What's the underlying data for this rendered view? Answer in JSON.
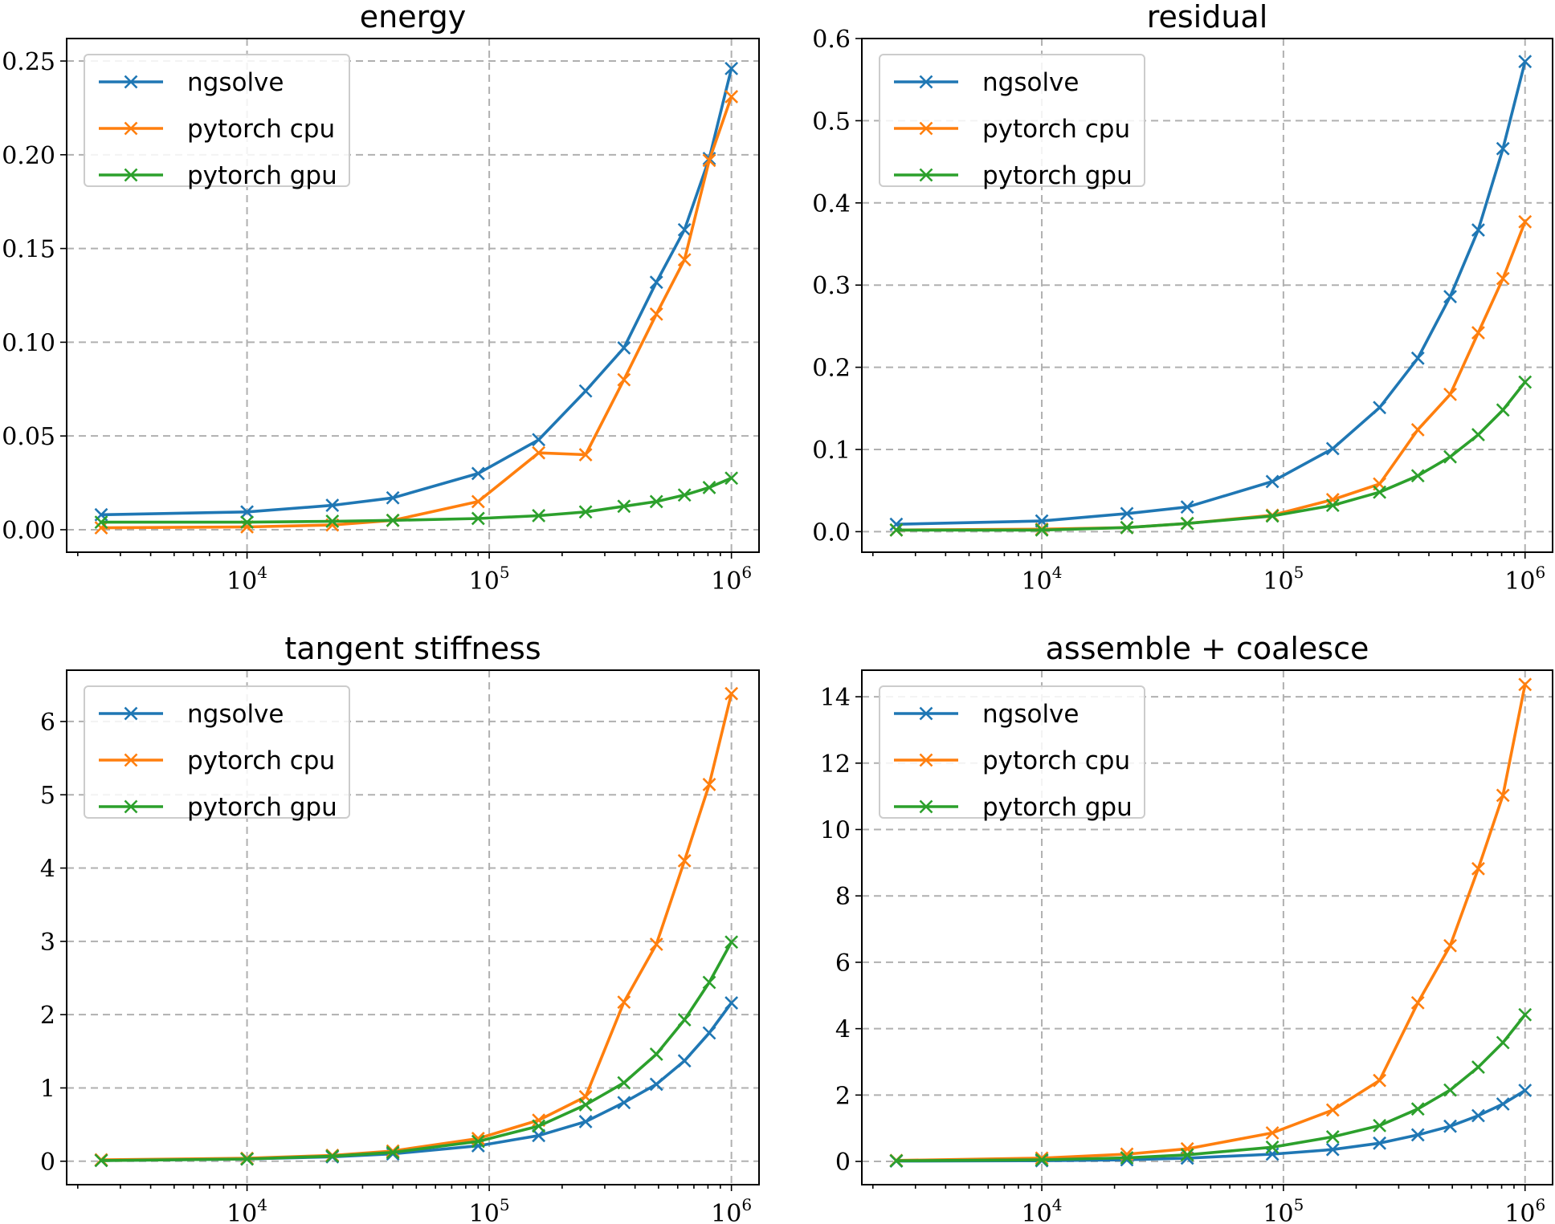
{
  "chart_data": [
    {
      "type": "line",
      "title": "energy",
      "xscale": "log",
      "xlim": [
        1800,
        1300000
      ],
      "ylim": [
        -0.012,
        0.262
      ],
      "yticks": [
        0.0,
        0.05,
        0.1,
        0.15,
        0.2,
        0.25
      ],
      "ytick_labels": [
        "0.00",
        "0.05",
        "0.10",
        "0.15",
        "0.20",
        "0.25"
      ],
      "xticks": [
        {
          "value": 10000,
          "base": "10",
          "exp": "4"
        },
        {
          "value": 100000,
          "base": "10",
          "exp": "5"
        },
        {
          "value": 1000000,
          "base": "10",
          "exp": "6"
        }
      ],
      "legend_position": "upper-left",
      "x": [
        2500,
        10000,
        22500,
        40000,
        90000,
        160000,
        250000,
        360000,
        490000,
        640000,
        810000,
        1000000
      ],
      "series": [
        {
          "name": "ngsolve",
          "color": "#1f77b4",
          "values": [
            0.008,
            0.0095,
            0.013,
            0.017,
            0.03,
            0.048,
            0.074,
            0.097,
            0.132,
            0.16,
            0.198,
            0.246
          ]
        },
        {
          "name": "pytorch cpu",
          "color": "#ff7f0e",
          "values": [
            0.001,
            0.0015,
            0.0025,
            0.005,
            0.015,
            0.041,
            0.04,
            0.08,
            0.115,
            0.144,
            0.197,
            0.231
          ]
        },
        {
          "name": "pytorch gpu",
          "color": "#2ca02c",
          "values": [
            0.004,
            0.004,
            0.0045,
            0.005,
            0.006,
            0.0075,
            0.0095,
            0.0125,
            0.015,
            0.0185,
            0.0225,
            0.0275
          ]
        }
      ]
    },
    {
      "type": "line",
      "title": "residual",
      "xscale": "log",
      "xlim": [
        1800,
        1300000
      ],
      "ylim": [
        -0.025,
        0.6
      ],
      "yticks": [
        0.0,
        0.1,
        0.2,
        0.3,
        0.4,
        0.5,
        0.6
      ],
      "ytick_labels": [
        "0.0",
        "0.1",
        "0.2",
        "0.3",
        "0.4",
        "0.5",
        "0.6"
      ],
      "xticks": [
        {
          "value": 10000,
          "base": "10",
          "exp": "4"
        },
        {
          "value": 100000,
          "base": "10",
          "exp": "5"
        },
        {
          "value": 1000000,
          "base": "10",
          "exp": "6"
        }
      ],
      "legend_position": "upper-left",
      "x": [
        2500,
        10000,
        22500,
        40000,
        90000,
        160000,
        250000,
        360000,
        490000,
        640000,
        810000,
        1000000
      ],
      "series": [
        {
          "name": "ngsolve",
          "color": "#1f77b4",
          "values": [
            0.009,
            0.013,
            0.022,
            0.03,
            0.061,
            0.101,
            0.151,
            0.211,
            0.286,
            0.367,
            0.466,
            0.572
          ]
        },
        {
          "name": "pytorch cpu",
          "color": "#ff7f0e",
          "values": [
            0.002,
            0.003,
            0.005,
            0.01,
            0.02,
            0.039,
            0.058,
            0.124,
            0.167,
            0.242,
            0.308,
            0.377
          ]
        },
        {
          "name": "pytorch gpu",
          "color": "#2ca02c",
          "values": [
            0.002,
            0.002,
            0.005,
            0.01,
            0.019,
            0.032,
            0.048,
            0.068,
            0.091,
            0.118,
            0.148,
            0.182
          ]
        }
      ]
    },
    {
      "type": "line",
      "title": "tangent stiffness",
      "xscale": "log",
      "xlim": [
        1800,
        1300000
      ],
      "ylim": [
        -0.32,
        6.7
      ],
      "yticks": [
        0,
        1,
        2,
        3,
        4,
        5,
        6
      ],
      "ytick_labels": [
        "0",
        "1",
        "2",
        "3",
        "4",
        "5",
        "6"
      ],
      "xticks": [
        {
          "value": 10000,
          "base": "10",
          "exp": "4"
        },
        {
          "value": 100000,
          "base": "10",
          "exp": "5"
        },
        {
          "value": 1000000,
          "base": "10",
          "exp": "6"
        }
      ],
      "legend_position": "upper-left",
      "x": [
        2500,
        10000,
        22500,
        40000,
        90000,
        160000,
        250000,
        360000,
        490000,
        640000,
        810000,
        1000000
      ],
      "series": [
        {
          "name": "ngsolve",
          "color": "#1f77b4",
          "values": [
            0.01,
            0.03,
            0.06,
            0.1,
            0.21,
            0.35,
            0.54,
            0.8,
            1.05,
            1.37,
            1.75,
            2.16
          ]
        },
        {
          "name": "pytorch cpu",
          "color": "#ff7f0e",
          "values": [
            0.02,
            0.04,
            0.08,
            0.14,
            0.31,
            0.56,
            0.88,
            2.17,
            2.96,
            4.1,
            5.14,
            6.38
          ]
        },
        {
          "name": "pytorch gpu",
          "color": "#2ca02c",
          "values": [
            0.01,
            0.03,
            0.07,
            0.12,
            0.27,
            0.48,
            0.77,
            1.07,
            1.46,
            1.93,
            2.44,
            2.99
          ]
        }
      ]
    },
    {
      "type": "line",
      "title": "assemble + coalesce",
      "xscale": "log",
      "xlim": [
        1800,
        1300000
      ],
      "ylim": [
        -0.7,
        14.8
      ],
      "yticks": [
        0,
        2,
        4,
        6,
        8,
        10,
        12,
        14
      ],
      "ytick_labels": [
        "0",
        "2",
        "4",
        "6",
        "8",
        "10",
        "12",
        "14"
      ],
      "xticks": [
        {
          "value": 10000,
          "base": "10",
          "exp": "4"
        },
        {
          "value": 100000,
          "base": "10",
          "exp": "5"
        },
        {
          "value": 1000000,
          "base": "10",
          "exp": "6"
        }
      ],
      "legend_position": "upper-left",
      "x": [
        2500,
        10000,
        22500,
        40000,
        90000,
        160000,
        250000,
        360000,
        490000,
        640000,
        810000,
        1000000
      ],
      "series": [
        {
          "name": "ngsolve",
          "color": "#1f77b4",
          "values": [
            0.01,
            0.02,
            0.05,
            0.1,
            0.22,
            0.36,
            0.55,
            0.8,
            1.06,
            1.38,
            1.73,
            2.14
          ]
        },
        {
          "name": "pytorch cpu",
          "color": "#ff7f0e",
          "values": [
            0.03,
            0.1,
            0.22,
            0.38,
            0.86,
            1.55,
            2.44,
            4.78,
            6.5,
            8.82,
            11.03,
            14.37
          ]
        },
        {
          "name": "pytorch gpu",
          "color": "#2ca02c",
          "values": [
            0.02,
            0.05,
            0.11,
            0.2,
            0.43,
            0.74,
            1.08,
            1.58,
            2.15,
            2.84,
            3.58,
            4.42
          ]
        }
      ]
    }
  ]
}
